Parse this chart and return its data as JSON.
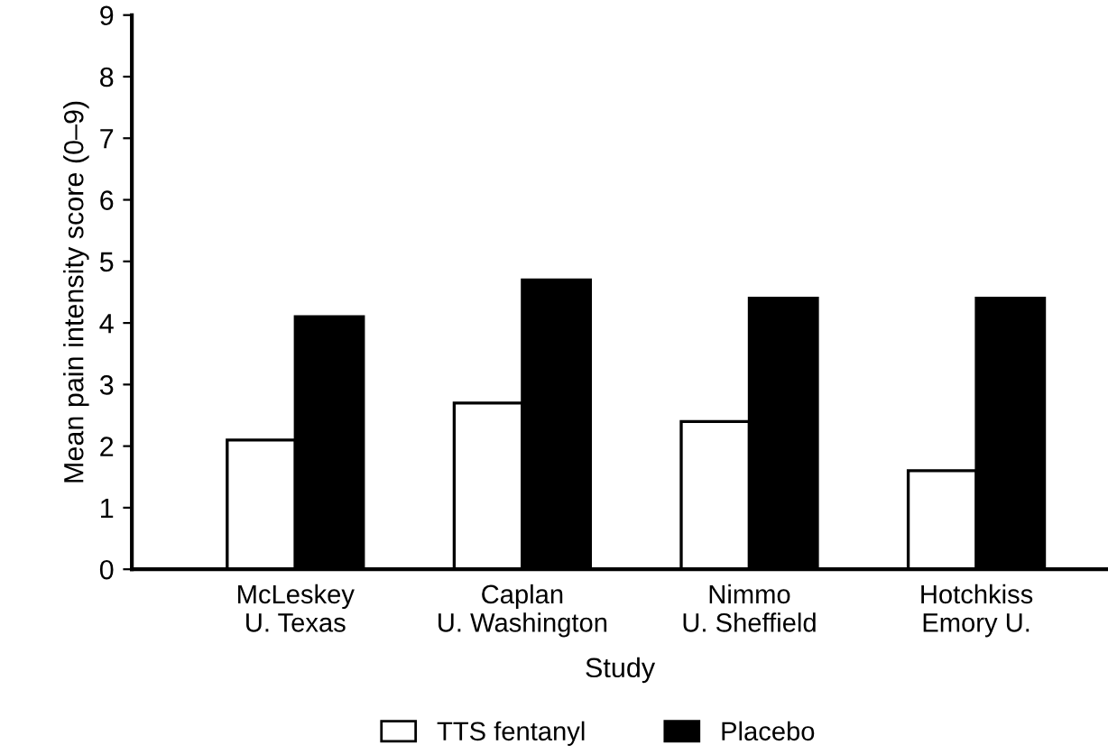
{
  "chart_data": {
    "type": "bar",
    "xlabel": "Study",
    "ylabel": "Mean pain intensity score (0–9)",
    "categories": [
      "McLeskey\nU. Texas",
      "Caplan\nU. Washington",
      "Nimmo\nU. Sheffield",
      "Hotchkiss\nEmory U."
    ],
    "series": [
      {
        "name": "TTS fentanyl",
        "color": "#ffffff",
        "values": [
          2.1,
          2.7,
          2.4,
          1.6
        ]
      },
      {
        "name": "Placebo",
        "color": "#000000",
        "values": [
          4.1,
          4.7,
          4.4,
          4.4
        ]
      }
    ],
    "ylim": [
      0,
      9
    ],
    "yticks": [
      0,
      1,
      2,
      3,
      4,
      5,
      6,
      7,
      8,
      9
    ],
    "grid": false,
    "legend": "bottom"
  }
}
